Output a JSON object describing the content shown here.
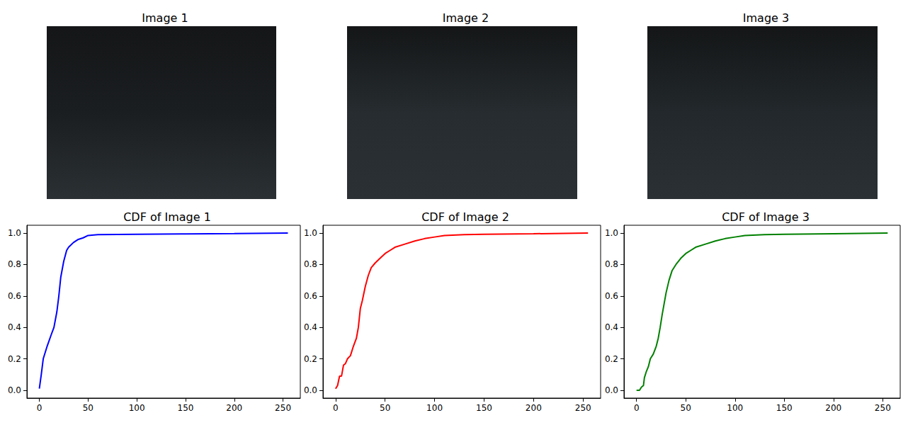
{
  "images": [
    {
      "title": "Image 1"
    },
    {
      "title": "Image 2"
    },
    {
      "title": "Image 3"
    }
  ],
  "chart_data": [
    {
      "type": "line",
      "title": "CDF of Image 1",
      "color": "#0000ff",
      "grid": false,
      "x": [
        0,
        2,
        4,
        8,
        12,
        15,
        18,
        20,
        22,
        25,
        28,
        30,
        35,
        40,
        45,
        50,
        60,
        100,
        150,
        200,
        255
      ],
      "values": [
        0.01,
        0.1,
        0.2,
        0.28,
        0.35,
        0.4,
        0.5,
        0.6,
        0.72,
        0.82,
        0.89,
        0.91,
        0.94,
        0.96,
        0.97,
        0.985,
        0.99,
        0.993,
        0.995,
        0.997,
        1.0
      ],
      "xlim": [
        -12.75,
        267.75
      ],
      "xticks": [
        0,
        50,
        100,
        150,
        200,
        250
      ],
      "ylim": [
        -0.05,
        1.05
      ],
      "yticks": [
        {
          "value": 0,
          "label": "0.0"
        },
        0.2,
        0.4,
        0.6,
        0.8,
        {
          "value": 1,
          "label": "1.0"
        }
      ]
    },
    {
      "type": "line",
      "title": "CDF of Image 2",
      "color": "#ff0000",
      "grid": false,
      "x": [
        0,
        2,
        4,
        6,
        8,
        10,
        12,
        15,
        18,
        21,
        23,
        25,
        27,
        30,
        33,
        36,
        40,
        45,
        50,
        55,
        60,
        70,
        80,
        90,
        100,
        110,
        130,
        150,
        200,
        255
      ],
      "values": [
        0.01,
        0.03,
        0.09,
        0.09,
        0.16,
        0.17,
        0.2,
        0.22,
        0.28,
        0.33,
        0.4,
        0.52,
        0.57,
        0.66,
        0.73,
        0.78,
        0.81,
        0.84,
        0.87,
        0.89,
        0.91,
        0.93,
        0.95,
        0.965,
        0.975,
        0.985,
        0.99,
        0.993,
        0.996,
        1.0
      ],
      "xlim": [
        -12.75,
        267.75
      ],
      "xticks": [
        0,
        50,
        100,
        150,
        200,
        250
      ],
      "ylim": [
        -0.05,
        1.05
      ],
      "yticks": [
        {
          "value": 0,
          "label": "0.0"
        },
        0.2,
        0.4,
        0.6,
        0.8,
        {
          "value": 1,
          "label": "1.0"
        }
      ]
    },
    {
      "type": "line",
      "title": "CDF of Image 3",
      "color": "#008000",
      "grid": false,
      "x": [
        0,
        3,
        5,
        7,
        8,
        10,
        12,
        14,
        17,
        20,
        22,
        24,
        26,
        28,
        30,
        33,
        36,
        40,
        45,
        50,
        55,
        60,
        70,
        80,
        90,
        100,
        110,
        130,
        150,
        200,
        255
      ],
      "values": [
        0.0,
        0.0,
        0.02,
        0.03,
        0.08,
        0.12,
        0.15,
        0.2,
        0.23,
        0.28,
        0.33,
        0.4,
        0.48,
        0.55,
        0.62,
        0.7,
        0.76,
        0.8,
        0.84,
        0.87,
        0.89,
        0.91,
        0.93,
        0.95,
        0.965,
        0.975,
        0.985,
        0.99,
        0.993,
        0.996,
        1.0
      ],
      "xlim": [
        -12.75,
        267.75
      ],
      "xticks": [
        0,
        50,
        100,
        150,
        200,
        250
      ],
      "ylim": [
        -0.05,
        1.05
      ],
      "yticks": [
        {
          "value": 0,
          "label": "0.0"
        },
        0.2,
        0.4,
        0.6,
        0.8,
        {
          "value": 1,
          "label": "1.0"
        }
      ]
    }
  ]
}
